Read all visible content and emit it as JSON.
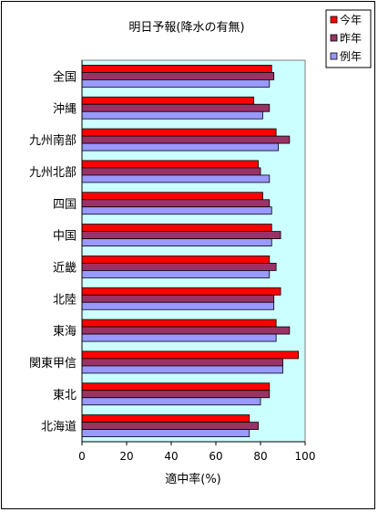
{
  "chart_data": {
    "type": "bar",
    "orientation": "horizontal",
    "title": "明日予報(降水の有無)",
    "xlabel": "適中率(%)",
    "ylabel": "",
    "xlim": [
      0,
      100
    ],
    "x_ticks": [
      "0",
      "20",
      "40",
      "60",
      "80",
      "100"
    ],
    "plot_background": "#ccffff",
    "grid": false,
    "legend_position": "top-right",
    "categories": [
      "全国",
      "沖縄",
      "九州南部",
      "九州北部",
      "四国",
      "中国",
      "近畿",
      "北陸",
      "東海",
      "関東甲信",
      "東北",
      "北海道"
    ],
    "series": [
      {
        "name": "今年",
        "color": "#ff0000",
        "values": [
          85,
          77,
          87,
          79,
          81,
          85,
          84,
          89,
          87,
          97,
          84,
          75
        ]
      },
      {
        "name": "昨年",
        "color": "#993366",
        "values": [
          86,
          84,
          93,
          80,
          84,
          89,
          87,
          86,
          93,
          90,
          84,
          79
        ]
      },
      {
        "name": "例年",
        "color": "#9999ff",
        "values": [
          84,
          81,
          88,
          84,
          85,
          85,
          84,
          86,
          87,
          90,
          80,
          75
        ]
      }
    ]
  }
}
